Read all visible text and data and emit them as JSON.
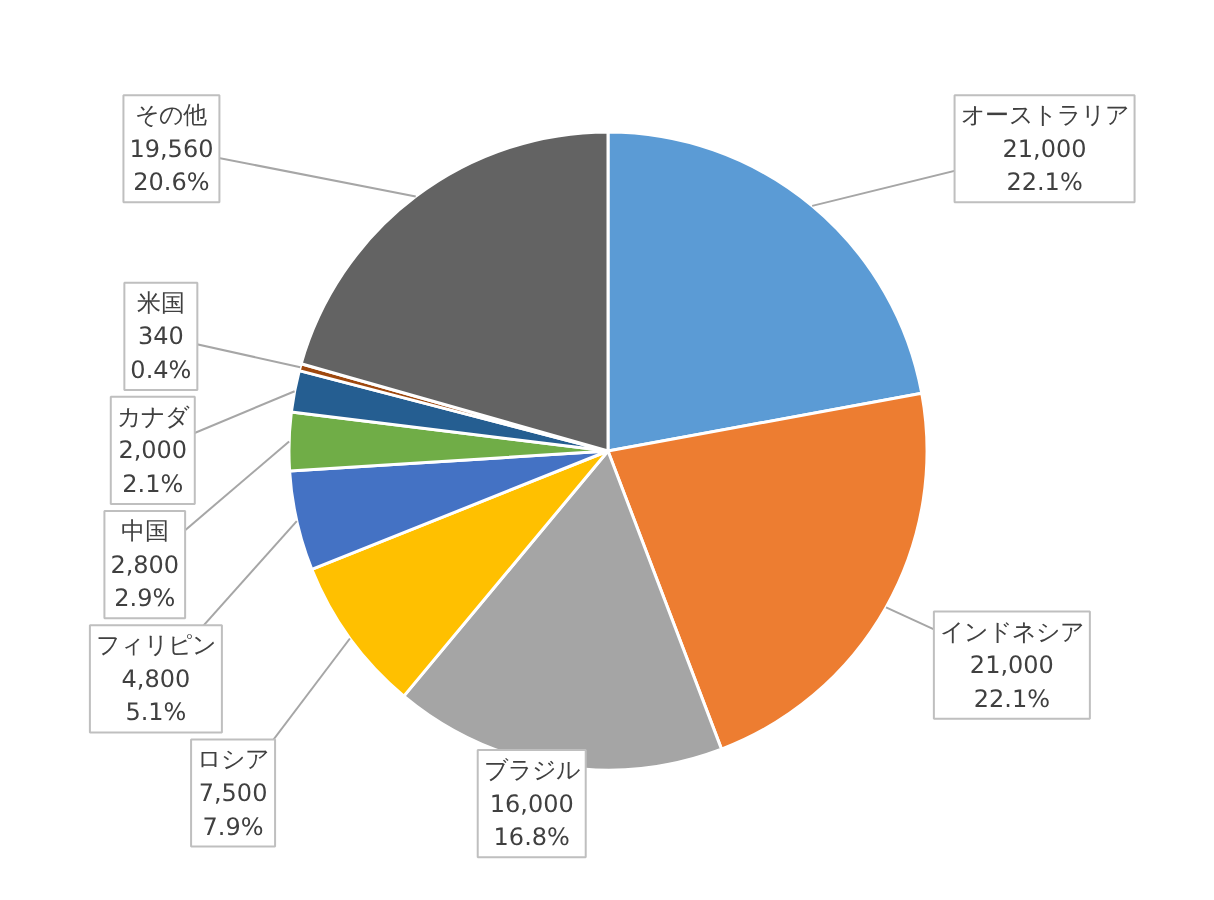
{
  "chart_data": {
    "type": "pie",
    "categories": [
      "オーストラリア",
      "インドネシア",
      "ブラジル",
      "ロシア",
      "フィリピン",
      "中国",
      "カナダ",
      "米国",
      "その他"
    ],
    "values": [
      21000,
      21000,
      16000,
      7500,
      4800,
      2800,
      2000,
      340,
      19560
    ],
    "colors": [
      "#5b9bd5",
      "#ed7d31",
      "#a5a5a5",
      "#ffc000",
      "#4472c4",
      "#70ad47",
      "#255e91",
      "#9e480e",
      "#636363"
    ],
    "value_labels": [
      "21,000\n22.1%",
      "21,000\n22.1%",
      "16,000\n16.8%",
      "7,500\n7.9%",
      "4,800\n5.1%",
      "2,800\n2.9%",
      "2,000\n2.1%",
      "340\n0.4%",
      "19,560\n20.6%"
    ],
    "legend": false
  }
}
